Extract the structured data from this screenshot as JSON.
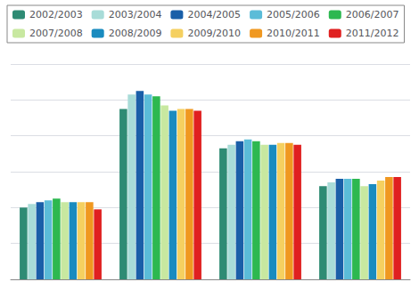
{
  "chart_data": {
    "type": "bar",
    "categories": [
      null,
      null,
      null,
      null
    ],
    "series": [
      {
        "name": "2002/2003",
        "color": "#2e8b74",
        "values": [
          4.0,
          9.5,
          7.3,
          5.2
        ]
      },
      {
        "name": "2003/2004",
        "color": "#a8dcd8",
        "values": [
          4.2,
          10.3,
          7.5,
          5.4
        ]
      },
      {
        "name": "2004/2005",
        "color": "#1a5fa8",
        "values": [
          4.3,
          10.5,
          7.7,
          5.6
        ]
      },
      {
        "name": "2005/2006",
        "color": "#5bbcd8",
        "values": [
          4.4,
          10.3,
          7.8,
          5.6
        ]
      },
      {
        "name": "2006/2007",
        "color": "#2db850",
        "values": [
          4.5,
          10.2,
          7.7,
          5.6
        ]
      },
      {
        "name": "2007/2008",
        "color": "#c8e8a0",
        "values": [
          4.3,
          9.7,
          7.5,
          5.2
        ]
      },
      {
        "name": "2008/2009",
        "color": "#1a8bbf",
        "values": [
          4.3,
          9.4,
          7.5,
          5.3
        ]
      },
      {
        "name": "2009/2010",
        "color": "#f5d060",
        "values": [
          4.3,
          9.5,
          7.6,
          5.5
        ]
      },
      {
        "name": "2010/2011",
        "color": "#f09820",
        "values": [
          4.3,
          9.5,
          7.6,
          5.7
        ]
      },
      {
        "name": "2011/2012",
        "color": "#e02020",
        "values": [
          3.9,
          9.4,
          7.5,
          5.7
        ]
      }
    ],
    "ylim": [
      0,
      12
    ],
    "yticks": [
      0,
      2,
      4,
      6,
      8,
      10,
      12
    ],
    "grid": true,
    "legend": "upper left",
    "tick_labels": false
  }
}
